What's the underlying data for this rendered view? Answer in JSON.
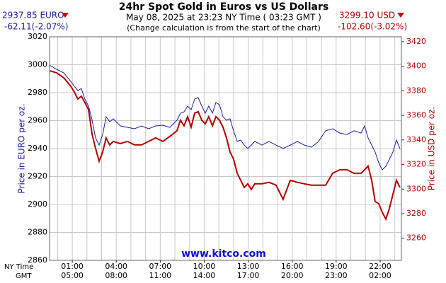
{
  "chart_data": {
    "type": "line",
    "title": "24hr Spot Gold in Euros vs US Dollars",
    "subtitle": "May 08, 2025 at 23:23 NY Time ( 03:23 GMT )",
    "note": "(Change calculation is from the start of the chart)",
    "left_price": "2937.85 EURO",
    "left_change": "-62.11(-2.07%)",
    "right_price": "3299.10 USD",
    "right_change": "-102.60(-3.02%)",
    "ylabel": "Price in EURO per oz.",
    "y2label": "Price in USD per oz.",
    "xlabel": "NY Time",
    "x2label": "GMT",
    "watermark": "www.kitco.com",
    "xlim": [
      -0.55,
      23.45
    ],
    "xticks": [
      {
        "value": 1,
        "label": "01:00"
      },
      {
        "value": 4,
        "label": "04:00"
      },
      {
        "value": 7,
        "label": "07:00"
      },
      {
        "value": 10,
        "label": "10:00"
      },
      {
        "value": 13,
        "label": "13:00"
      },
      {
        "value": 16,
        "label": "16:00"
      },
      {
        "value": 19,
        "label": "19:00"
      },
      {
        "value": 22,
        "label": "22:00"
      }
    ],
    "x2ticks": [
      {
        "value": 1,
        "label": "05:00"
      },
      {
        "value": 4,
        "label": "08:00"
      },
      {
        "value": 7,
        "label": "11:00"
      },
      {
        "value": 10,
        "label": "14:00"
      },
      {
        "value": 13,
        "label": "17:00"
      },
      {
        "value": 16,
        "label": "20:00"
      },
      {
        "value": 19,
        "label": "23:00"
      },
      {
        "value": 22,
        "label": "02:00"
      }
    ],
    "xgrid": [
      0,
      1,
      2,
      3,
      4,
      5,
      6,
      7,
      8,
      9,
      10,
      11,
      12,
      13,
      14,
      15,
      16,
      17,
      18,
      19,
      20,
      21,
      22,
      23
    ],
    "ylim": [
      2860,
      3020
    ],
    "yticks": [
      2860,
      2880,
      2900,
      2920,
      2940,
      2960,
      2980,
      3000,
      3020
    ],
    "y2lim": [
      3242,
      3424
    ],
    "y2ticks": [
      3260,
      3280,
      3300,
      3320,
      3340,
      3360,
      3380,
      3400,
      3420
    ],
    "grid": true,
    "x": [
      -0.55,
      -0.07,
      0.42,
      0.9,
      1.14,
      1.38,
      1.62,
      1.86,
      2.11,
      2.35,
      2.59,
      2.83,
      3.07,
      3.31,
      3.55,
      3.8,
      4.28,
      4.76,
      5.24,
      5.73,
      6.21,
      6.69,
      7.18,
      7.66,
      8.14,
      8.38,
      8.62,
      8.87,
      9.11,
      9.35,
      9.59,
      9.83,
      10.07,
      10.31,
      10.56,
      10.8,
      11.04,
      11.28,
      11.52,
      11.76,
      12.0,
      12.25,
      12.49,
      12.73,
      12.97,
      13.21,
      13.45,
      13.94,
      14.42,
      14.9,
      15.38,
      15.87,
      16.35,
      16.83,
      17.32,
      17.8,
      18.28,
      18.76,
      19.25,
      19.73,
      20.21,
      20.7,
      20.94,
      21.18,
      21.42,
      21.66,
      21.9,
      22.14,
      22.39,
      22.63,
      22.87,
      23.11,
      23.35
    ],
    "series": [
      {
        "color": "#1c1c9e",
        "axis": "y",
        "values": [
          2999.7,
          2996.7,
          2994.2,
          2988.1,
          2984.6,
          2981.5,
          2983.0,
          2975.4,
          2970.4,
          2960.3,
          2947.6,
          2942.5,
          2950.1,
          2962.8,
          2959.2,
          2961.3,
          2956.2,
          2955.2,
          2954.2,
          2956.2,
          2954.2,
          2956.2,
          2956.7,
          2955.2,
          2960.3,
          2965.3,
          2966.3,
          2970.4,
          2967.8,
          2975.4,
          2976.5,
          2970.4,
          2965.3,
          2970.4,
          2965.3,
          2972.9,
          2971.4,
          2962.8,
          2960.3,
          2961.3,
          2952.7,
          2945.1,
          2946.1,
          2942.5,
          2940.0,
          2942.5,
          2945.1,
          2942.5,
          2945.1,
          2942.5,
          2940.0,
          2942.5,
          2945.1,
          2942.5,
          2941.0,
          2945.1,
          2952.7,
          2954.2,
          2951.1,
          2950.1,
          2952.7,
          2951.1,
          2956.2,
          2947.6,
          2942.5,
          2937.5,
          2929.9,
          2924.8,
          2927.3,
          2932.4,
          2937.5,
          2946.1,
          2940.0
        ]
      },
      {
        "color": "#b00000",
        "axis": "y2",
        "values": [
          3396.4,
          3394.7,
          3390.6,
          3383.7,
          3379.1,
          3373.4,
          3375.7,
          3370.5,
          3364.7,
          3344.6,
          3333.1,
          3322.7,
          3330.2,
          3341.7,
          3336.0,
          3338.8,
          3337.1,
          3338.8,
          3336.0,
          3336.0,
          3338.8,
          3341.7,
          3338.8,
          3342.9,
          3347.5,
          3356.1,
          3351.5,
          3359.0,
          3350.4,
          3361.9,
          3363.0,
          3356.1,
          3353.2,
          3359.0,
          3351.5,
          3359.0,
          3356.1,
          3350.4,
          3341.7,
          3330.2,
          3324.5,
          3312.9,
          3307.2,
          3301.4,
          3304.3,
          3299.7,
          3304.3,
          3304.3,
          3305.5,
          3303.2,
          3291.7,
          3307.2,
          3305.5,
          3304.3,
          3303.2,
          3303.2,
          3303.2,
          3312.9,
          3315.8,
          3315.8,
          3312.9,
          3312.9,
          3315.8,
          3318.7,
          3307.2,
          3289.9,
          3288.2,
          3281.3,
          3275.5,
          3284.2,
          3295.7,
          3307.2,
          3301.4
        ]
      }
    ]
  }
}
